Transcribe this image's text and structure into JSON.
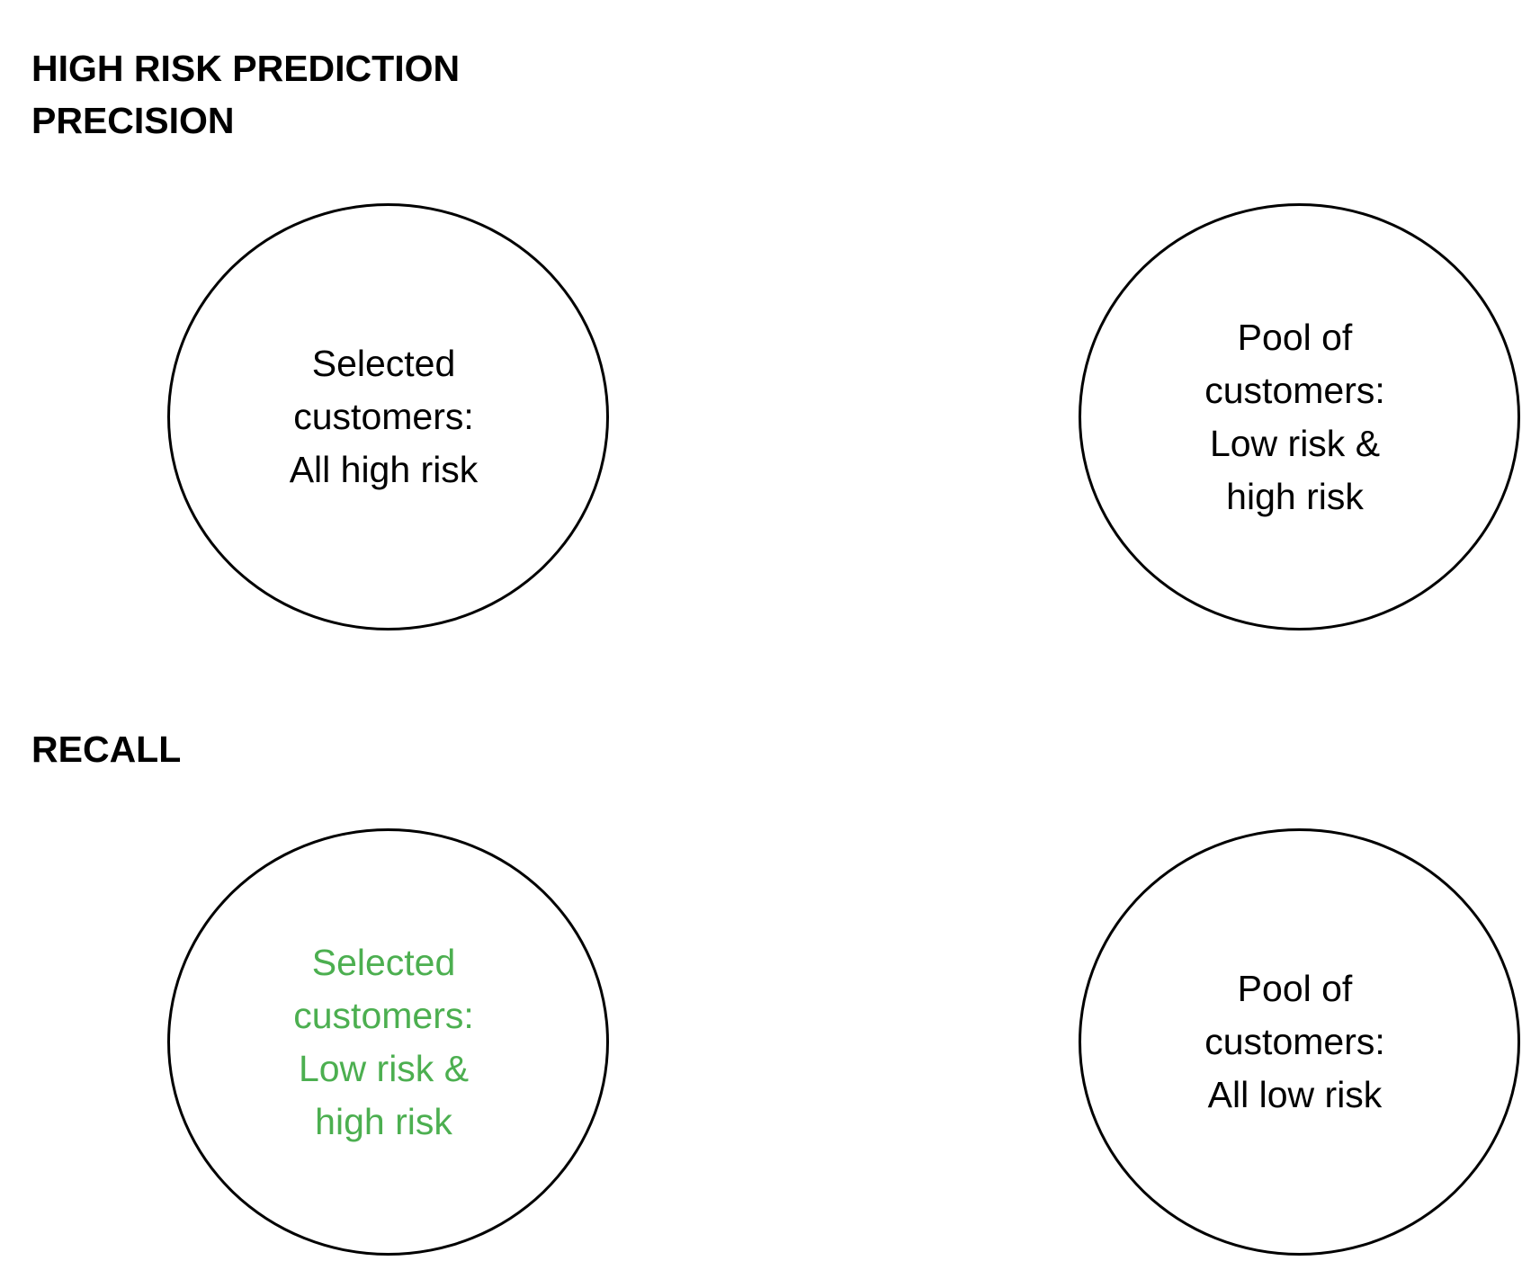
{
  "headings": {
    "line1": "HIGH RISK PREDICTION",
    "line2": "PRECISION",
    "recall": "RECALL"
  },
  "precision": {
    "selected": {
      "lines": [
        "Selected",
        "customers:",
        "All high risk"
      ],
      "color": "#000000"
    },
    "pool": {
      "lines": [
        "Pool of",
        "customers:",
        "Low risk &",
        "high risk"
      ],
      "color": "#000000"
    }
  },
  "recall": {
    "selected": {
      "lines": [
        "Selected",
        "customers:",
        "Low risk &",
        "high risk"
      ],
      "color": "#4CAF50"
    },
    "pool": {
      "lines": [
        "Pool of",
        "customers:",
        "All low risk"
      ],
      "color": "#000000"
    }
  }
}
